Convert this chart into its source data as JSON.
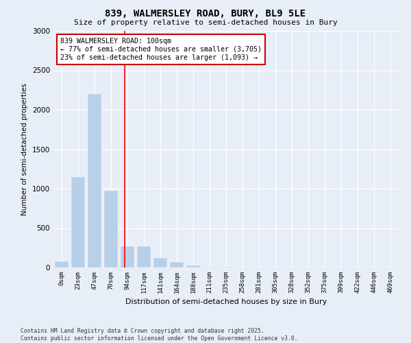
{
  "title": "839, WALMERSLEY ROAD, BURY, BL9 5LE",
  "subtitle": "Size of property relative to semi-detached houses in Bury",
  "xlabel": "Distribution of semi-detached houses by size in Bury",
  "ylabel": "Number of semi-detached properties",
  "footnote1": "Contains HM Land Registry data © Crown copyright and database right 2025.",
  "footnote2": "Contains public sector information licensed under the Open Government Licence v3.0.",
  "bar_labels": [
    "0sqm",
    "23sqm",
    "47sqm",
    "70sqm",
    "94sqm",
    "117sqm",
    "141sqm",
    "164sqm",
    "188sqm",
    "211sqm",
    "235sqm",
    "258sqm",
    "281sqm",
    "305sqm",
    "328sqm",
    "352sqm",
    "375sqm",
    "399sqm",
    "422sqm",
    "446sqm",
    "469sqm"
  ],
  "bar_values": [
    80,
    1150,
    2200,
    970,
    270,
    270,
    120,
    70,
    30,
    5,
    5,
    2,
    0,
    0,
    0,
    0,
    0,
    0,
    0,
    0,
    0
  ],
  "bar_color": "#b8cfe8",
  "red_line_x": 3.83,
  "annotation_title": "839 WALMERSLEY ROAD: 100sqm",
  "annotation_line1": "← 77% of semi-detached houses are smaller (3,705)",
  "annotation_line2": "23% of semi-detached houses are larger (1,093) →",
  "annotation_box_color": "#cc0000",
  "ylim": [
    0,
    3000
  ],
  "yticks": [
    0,
    500,
    1000,
    1500,
    2000,
    2500,
    3000
  ],
  "bg_color": "#e8eef8",
  "plot_bg_color": "#e8eef8",
  "grid_color": "#ffffff"
}
